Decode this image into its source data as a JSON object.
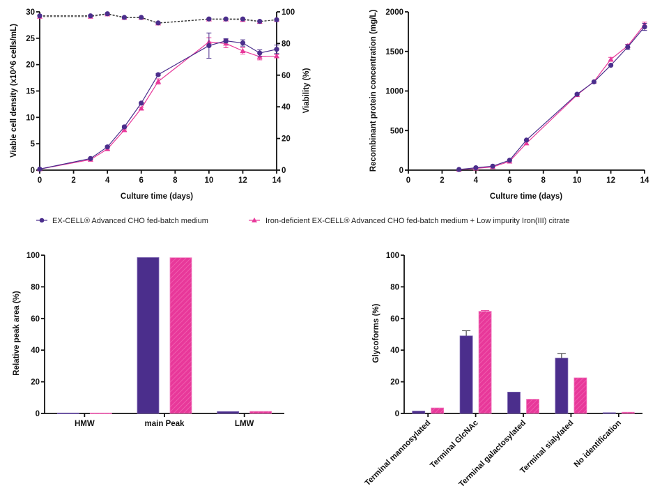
{
  "colors": {
    "series_a": "#4B2E8C",
    "series_b": "#E8389A",
    "axis": "#111111"
  },
  "legend": {
    "items": [
      {
        "label": "EX-CELL® Advanced CHO fed-batch medium",
        "marker": "circle",
        "color": "#4B2E8C"
      },
      {
        "label": "Iron-deficient EX-CELL® Advanced CHO fed-batch medium + Low impurity Iron(III) citrate",
        "marker": "triangle",
        "color": "#E8389A"
      }
    ]
  },
  "chart_data": [
    {
      "id": "vcd",
      "type": "line",
      "title": "",
      "xlabel": "Culture time (days)",
      "ylabel": "Viable cell density (x10^6 cells/mL)",
      "y2label": "Viability (%)",
      "xlim": [
        0,
        14
      ],
      "ylim": [
        0,
        30
      ],
      "y2lim": [
        0,
        100
      ],
      "xticks": [
        "0",
        "2",
        "4",
        "6",
        "8",
        "10",
        "12",
        "14"
      ],
      "yticks": [
        "0",
        "5",
        "10",
        "15",
        "20",
        "25",
        "30"
      ],
      "y2ticks": [
        "0",
        "20",
        "40",
        "60",
        "80",
        "100"
      ],
      "grid": false,
      "x": [
        0,
        3,
        4,
        5,
        6,
        7,
        10,
        11,
        12,
        13,
        14
      ],
      "series": [
        {
          "name": "EX-CELL® Advanced CHO fed-batch medium",
          "axis": "left",
          "style": "solid",
          "marker": "circle",
          "values": [
            0.2,
            2.2,
            4.4,
            8.2,
            12.7,
            18.1,
            23.6,
            24.5,
            24.1,
            22.2,
            22.9
          ],
          "errors": [
            0,
            0.1,
            0.2,
            0.2,
            0.2,
            0.2,
            2.4,
            0.4,
            0.6,
            0.6,
            0.8
          ]
        },
        {
          "name": "Iron-deficient EX-CELL® Advanced CHO fed-batch medium + Low impurity Iron(III) citrate",
          "axis": "left",
          "style": "solid",
          "marker": "triangle",
          "values": [
            0.2,
            2.0,
            4.0,
            7.6,
            11.7,
            16.8,
            24.3,
            24.0,
            22.6,
            21.5,
            21.6
          ],
          "errors": [
            0,
            0.1,
            0.2,
            0.2,
            0.2,
            0.5,
            0.8,
            0.8,
            0.6,
            0.6,
            0.3
          ]
        },
        {
          "name": "EX-CELL® Advanced CHO fed-batch medium (viability)",
          "axis": "right",
          "style": "dashed",
          "marker": "circle",
          "values": [
            97.5,
            97.5,
            98.8,
            96.5,
            96.5,
            93.0,
            95.5,
            95.5,
            95.5,
            94.0,
            95.0
          ],
          "errors": [
            0,
            0,
            0,
            0,
            0,
            0.5,
            0.5,
            0,
            0,
            0,
            0
          ]
        },
        {
          "name": "Iron-deficient EX-CELL® Advanced CHO fed-batch medium + Low impurity Iron(III) citrate (viability)",
          "axis": "right",
          "style": "dashed",
          "marker": "triangle",
          "values": [
            97.0,
            97.0,
            98.5,
            96.3,
            96.3,
            92.8,
            95.3,
            95.3,
            95.0,
            93.8,
            95.0
          ],
          "errors": [
            0,
            0,
            0,
            0,
            0,
            0.5,
            0.5,
            0,
            0,
            0,
            0
          ]
        }
      ]
    },
    {
      "id": "titer",
      "type": "line",
      "title": "",
      "xlabel": "Culture time (days)",
      "ylabel": "Recombinant protein concentration (mg/L)",
      "xlim": [
        0,
        14
      ],
      "ylim": [
        0,
        2000
      ],
      "xticks": [
        "0",
        "2",
        "4",
        "6",
        "8",
        "10",
        "12",
        "14"
      ],
      "yticks": [
        "0",
        "500",
        "1000",
        "1500",
        "2000"
      ],
      "grid": false,
      "x": [
        3,
        4,
        5,
        6,
        7,
        10,
        11,
        12,
        13,
        14
      ],
      "series": [
        {
          "name": "EX-CELL® Advanced CHO fed-batch medium",
          "marker": "circle",
          "values": [
            8,
            30,
            50,
            125,
            380,
            960,
            1115,
            1325,
            1555,
            1810
          ],
          "errors": [
            0,
            0,
            0,
            0,
            0,
            10,
            0,
            0,
            30,
            45
          ]
        },
        {
          "name": "Iron-deficient EX-CELL® Advanced CHO fed-batch medium + Low impurity Iron(III) citrate",
          "marker": "triangle",
          "values": [
            6,
            22,
            40,
            110,
            340,
            950,
            1120,
            1400,
            1570,
            1840
          ],
          "errors": [
            0,
            0,
            0,
            0,
            0,
            0,
            0,
            25,
            20,
            30
          ]
        }
      ]
    },
    {
      "id": "sec",
      "type": "bar",
      "title": "",
      "xlabel": "",
      "ylabel": "Relative peak area (%)",
      "ylim": [
        0,
        100
      ],
      "yticks": [
        "0",
        "20",
        "40",
        "60",
        "80",
        "100"
      ],
      "grid": false,
      "categories": [
        "HMW",
        "main Peak",
        "LMW"
      ],
      "series": [
        {
          "name": "EX-CELL® Advanced CHO fed-batch medium",
          "pattern": "solid",
          "values": [
            0.3,
            98.5,
            1.2
          ],
          "errors": [
            0,
            0,
            0
          ]
        },
        {
          "name": "Iron-deficient EX-CELL® Advanced CHO fed-batch medium + Low impurity Iron(III) citrate",
          "pattern": "hatched",
          "values": [
            0.3,
            98.4,
            1.3
          ],
          "errors": [
            0,
            0.1,
            0
          ]
        }
      ]
    },
    {
      "id": "glyco",
      "type": "bar",
      "title": "",
      "xlabel": "",
      "ylabel": "Glycoforms (%)",
      "ylim": [
        0,
        100
      ],
      "yticks": [
        "0",
        "20",
        "40",
        "60",
        "80",
        "100"
      ],
      "grid": false,
      "categories": [
        "Terminal mannosylated",
        "Terminal GlcNAc",
        "Terminal galactosylated",
        "Terminal sialylated",
        "No identification"
      ],
      "series": [
        {
          "name": "EX-CELL® Advanced CHO fed-batch medium",
          "pattern": "solid",
          "values": [
            1.5,
            49,
            13.5,
            35,
            0.5
          ],
          "errors": [
            0.3,
            3.2,
            0.4,
            2.8,
            0.2
          ]
        },
        {
          "name": "Iron-deficient EX-CELL® Advanced CHO fed-batch medium + Low impurity Iron(III) citrate",
          "pattern": "hatched",
          "values": [
            3.5,
            64.5,
            9.0,
            22.5,
            0.8
          ],
          "errors": [
            0.2,
            0.5,
            0.4,
            0.4,
            0.1
          ]
        }
      ]
    }
  ]
}
